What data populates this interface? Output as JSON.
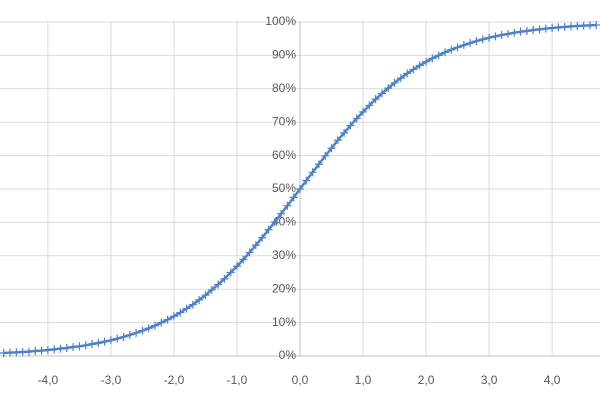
{
  "chart_data": {
    "type": "line",
    "x": [
      -4.7,
      -4.6,
      -4.5,
      -4.4,
      -4.3,
      -4.2,
      -4.1,
      -4.0,
      -3.9,
      -3.8,
      -3.7,
      -3.6,
      -3.5,
      -3.4,
      -3.3,
      -3.2,
      -3.1,
      -3.0,
      -2.9,
      -2.8,
      -2.7,
      -2.6,
      -2.5,
      -2.4,
      -2.3,
      -2.2,
      -2.1,
      -2.0,
      -1.9,
      -1.8,
      -1.7,
      -1.6,
      -1.5,
      -1.4,
      -1.3,
      -1.2,
      -1.1,
      -1.0,
      -0.9,
      -0.8,
      -0.7,
      -0.6,
      -0.5,
      -0.4,
      -0.3,
      -0.2,
      -0.1,
      0,
      0.1,
      0.2,
      0.3,
      0.4,
      0.5,
      0.6,
      0.7,
      0.8,
      0.9,
      1.0,
      1.1,
      1.2,
      1.3,
      1.4,
      1.5,
      1.6,
      1.7,
      1.8,
      1.9,
      2.0,
      2.1,
      2.2,
      2.3,
      2.4,
      2.5,
      2.6,
      2.7,
      2.8,
      2.9,
      3.0,
      3.1,
      3.2,
      3.3,
      3.4,
      3.5,
      3.6,
      3.7,
      3.8,
      3.9,
      4.0,
      4.1,
      4.2,
      4.3,
      4.4,
      4.5,
      4.6,
      4.7
    ],
    "values": [
      0.9,
      1.0,
      1.1,
      1.2,
      1.3,
      1.5,
      1.6,
      1.8,
      2.0,
      2.2,
      2.4,
      2.7,
      2.9,
      3.2,
      3.6,
      3.9,
      4.3,
      4.7,
      5.2,
      5.7,
      6.3,
      6.9,
      7.6,
      8.3,
      9.1,
      10.0,
      10.9,
      11.9,
      13.0,
      14.2,
      15.4,
      16.8,
      18.2,
      19.8,
      21.4,
      23.1,
      25.0,
      26.9,
      28.9,
      31.0,
      33.2,
      35.4,
      37.8,
      40.1,
      42.6,
      45.0,
      47.5,
      50,
      52.5,
      55.0,
      57.4,
      59.9,
      62.2,
      64.6,
      66.8,
      69.0,
      71.1,
      73.1,
      75.0,
      76.9,
      78.6,
      80.2,
      81.8,
      83.2,
      84.6,
      85.8,
      87.0,
      88.1,
      89.1,
      90.0,
      90.9,
      91.7,
      92.4,
      93.1,
      93.7,
      94.3,
      94.8,
      95.3,
      95.7,
      96.1,
      96.4,
      96.8,
      97.1,
      97.3,
      97.6,
      97.8,
      98.0,
      98.2,
      98.4,
      98.5,
      98.7,
      98.8,
      98.9,
      99.0,
      99.1
    ],
    "color": "#4f81c7",
    "marker": "+",
    "xlim": [
      -4.76,
      4.76
    ],
    "xticks": [
      {
        "value": -4,
        "label": "-4,0"
      },
      {
        "value": -3,
        "label": "-3,0"
      },
      {
        "value": -2,
        "label": "-2,0"
      },
      {
        "value": -1,
        "label": "-1,0"
      },
      {
        "value": 0,
        "label": "0,0"
      },
      {
        "value": 1,
        "label": "1,0"
      },
      {
        "value": 2,
        "label": "2,0"
      },
      {
        "value": 3,
        "label": "3,0"
      },
      {
        "value": 4,
        "label": "4,0"
      }
    ],
    "ylim": [
      0,
      100
    ],
    "yticks": [
      {
        "value": 0,
        "label": "0%"
      },
      {
        "value": 10,
        "label": "10%"
      },
      {
        "value": 20,
        "label": "20%"
      },
      {
        "value": 30,
        "label": "30%"
      },
      {
        "value": 40,
        "label": "40%"
      },
      {
        "value": 50,
        "label": "50%"
      },
      {
        "value": 60,
        "label": "60%"
      },
      {
        "value": 70,
        "label": "70%"
      },
      {
        "value": 80,
        "label": "80%"
      },
      {
        "value": 90,
        "label": "90%"
      },
      {
        "value": 100,
        "label": "100%"
      }
    ],
    "grid": true
  }
}
